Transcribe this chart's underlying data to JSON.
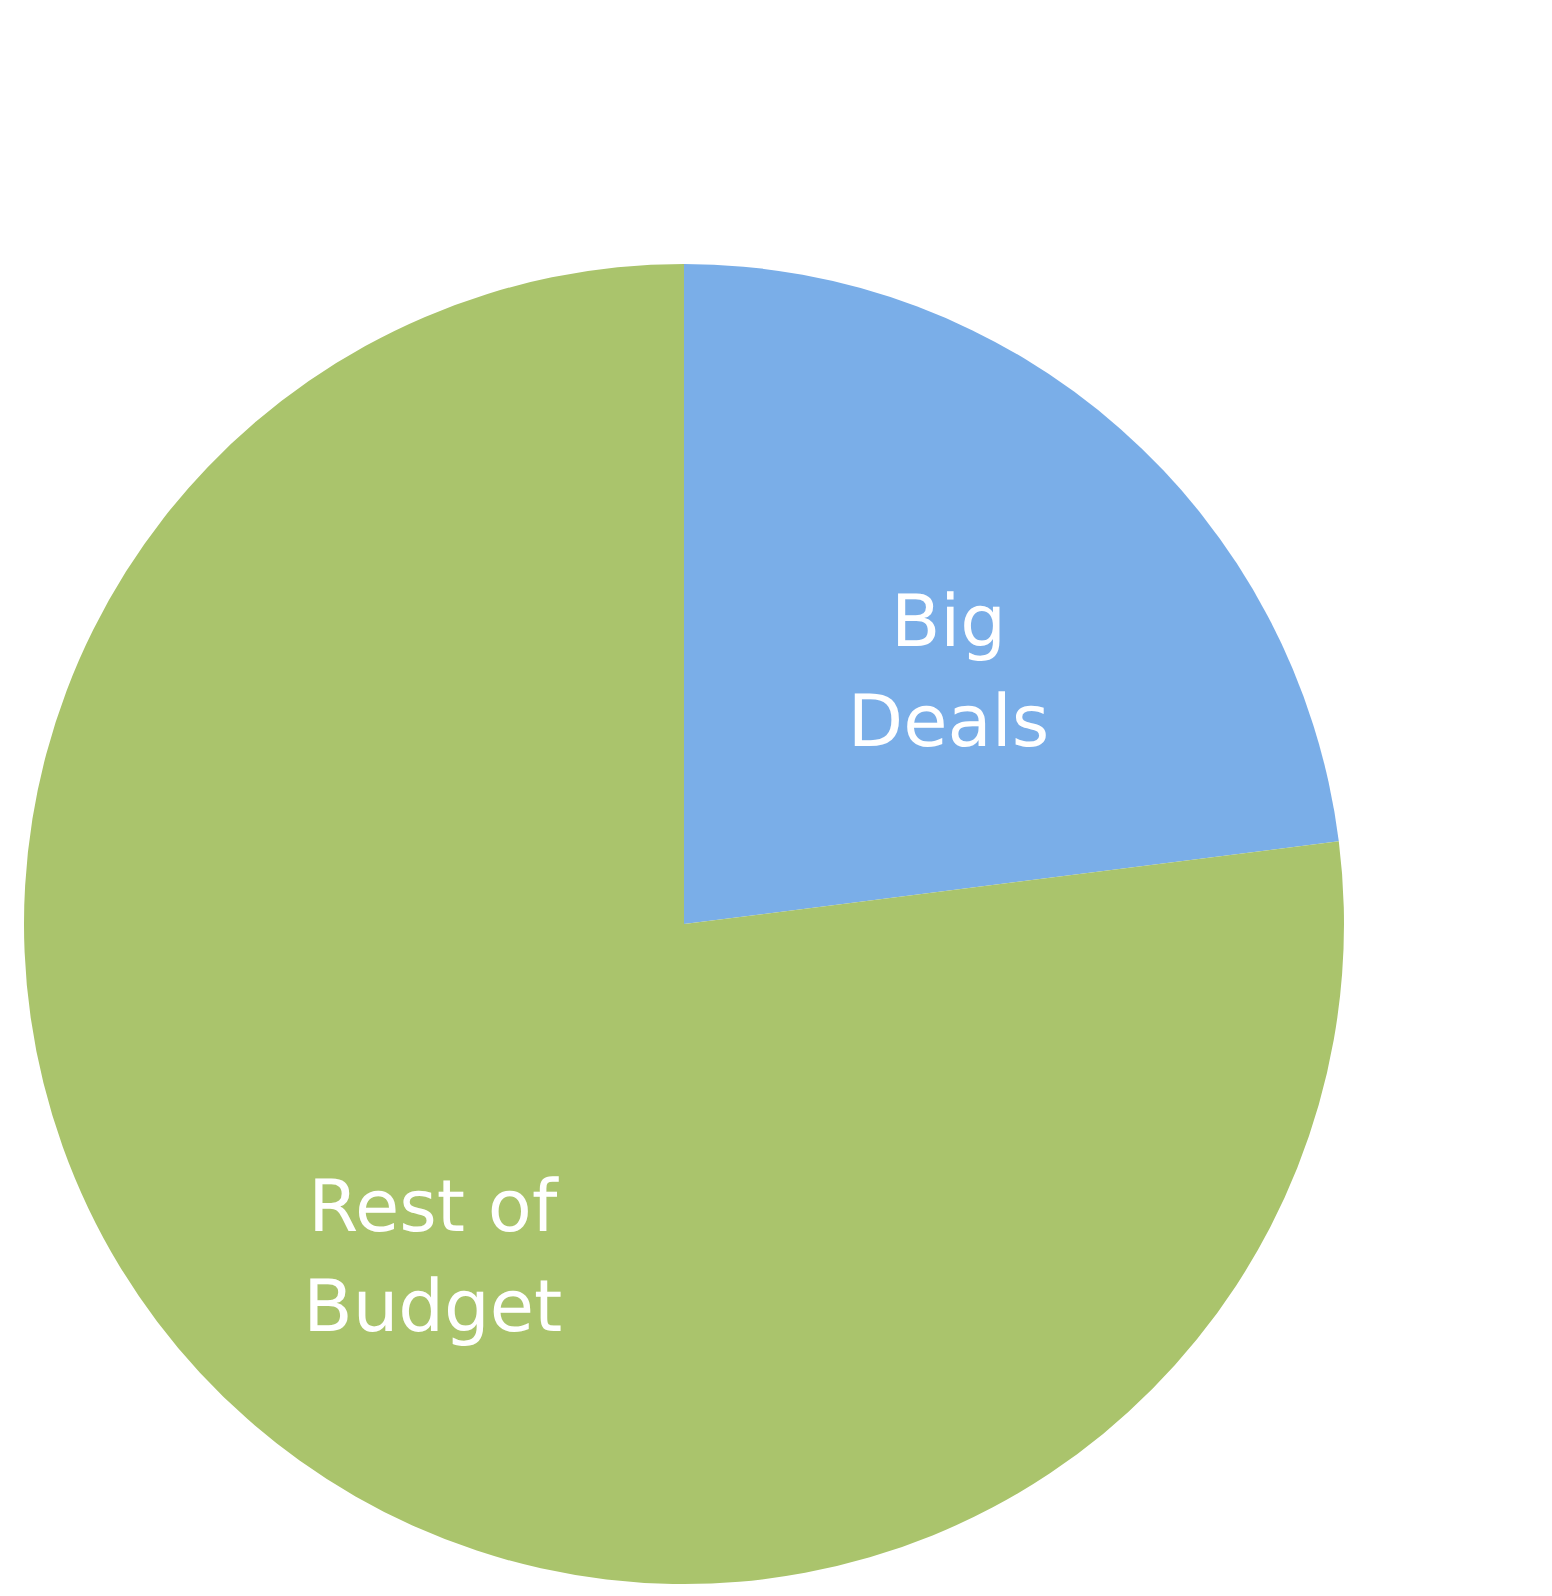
{
  "chart_data": {
    "type": "pie",
    "categories": [
      "Big Deals",
      "Rest of Budget"
    ],
    "values": [
      23,
      77
    ],
    "colors": [
      "#7aaee8",
      "#aac46c"
    ]
  }
}
